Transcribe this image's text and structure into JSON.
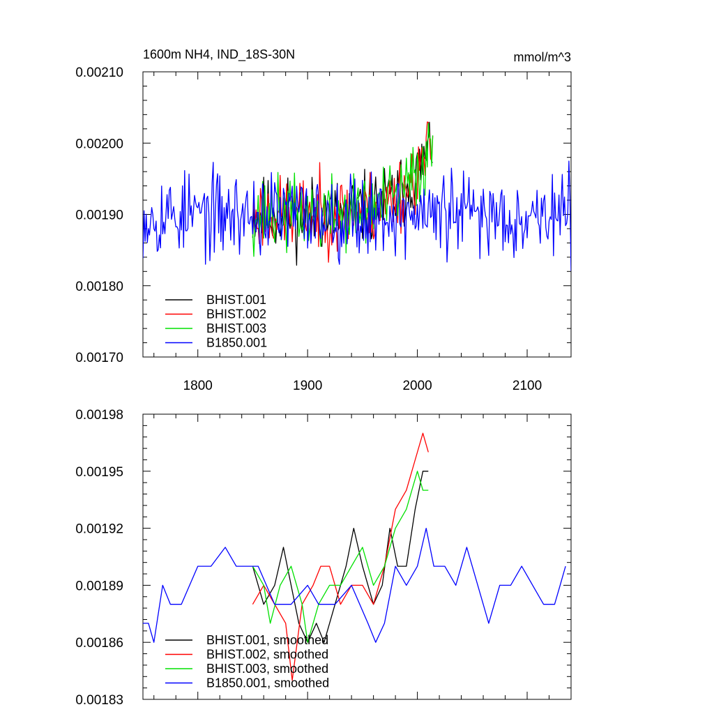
{
  "chart_data": [
    {
      "type": "line",
      "title": "1600m NH4, IND_18S-30N",
      "units": "mmol/m^3",
      "xlim": [
        1750,
        2140
      ],
      "ylim": [
        0.0017,
        0.0021
      ],
      "yticks": [
        "0.00170",
        "0.00180",
        "0.00190",
        "0.00200",
        "0.00210"
      ],
      "xticks": [
        "1800",
        "1900",
        "2000",
        "2100"
      ],
      "legend_position": "bottom-left",
      "series": [
        {
          "name": "BHIST.001",
          "color": "#000000",
          "x_start": 1850,
          "x_end": 2014,
          "mean": 0.0019,
          "amplitude": 4e-05,
          "trend_to_end": 0.0001,
          "seed": 11
        },
        {
          "name": "BHIST.002",
          "color": "#ff0000",
          "x_start": 1850,
          "x_end": 2014,
          "mean": 0.0019,
          "amplitude": 4e-05,
          "trend_to_end": 0.0001,
          "seed": 23
        },
        {
          "name": "BHIST.003",
          "color": "#00e000",
          "x_start": 1850,
          "x_end": 2014,
          "mean": 0.0019,
          "amplitude": 4e-05,
          "trend_to_end": 0.0001,
          "seed": 37
        },
        {
          "name": "B1850.001",
          "color": "#0000ff",
          "x_start": 1750,
          "x_end": 2140,
          "mean": 0.0019,
          "amplitude": 4.5e-05,
          "trend_to_end": 0.0,
          "seed": 53
        }
      ]
    },
    {
      "type": "line",
      "ylim": [
        0.00183,
        0.00198
      ],
      "yticks": [
        "0.00183",
        "0.00186",
        "0.00189",
        "0.00192",
        "0.00195",
        "0.00198"
      ],
      "legend_position": "bottom-left",
      "series": [
        {
          "name": "BHIST.001, smoothed",
          "color": "#000000",
          "x": [
            1850,
            1860,
            1870,
            1878,
            1885,
            1892,
            1900,
            1908,
            1915,
            1925,
            1935,
            1942,
            1950,
            1960,
            1968,
            1975,
            1982,
            1990,
            1998,
            2005,
            2010
          ],
          "y": [
            0.0019,
            0.00188,
            0.00189,
            0.00191,
            0.00189,
            0.00187,
            0.00186,
            0.00187,
            0.00186,
            0.00188,
            0.0019,
            0.00192,
            0.0019,
            0.00188,
            0.00189,
            0.00192,
            0.0019,
            0.0019,
            0.00193,
            0.00195,
            0.00195
          ]
        },
        {
          "name": "BHIST.002, smoothed",
          "color": "#ff0000",
          "x": [
            1850,
            1860,
            1870,
            1880,
            1886,
            1895,
            1905,
            1912,
            1920,
            1930,
            1940,
            1950,
            1960,
            1970,
            1980,
            1990,
            2000,
            2005,
            2010
          ],
          "y": [
            0.00188,
            0.00189,
            0.00188,
            0.00187,
            0.00184,
            0.00188,
            0.00189,
            0.0019,
            0.0019,
            0.00188,
            0.00189,
            0.00189,
            0.00188,
            0.0019,
            0.00193,
            0.00194,
            0.00196,
            0.00197,
            0.00196
          ]
        },
        {
          "name": "BHIST.003, smoothed",
          "color": "#00e000",
          "x": [
            1850,
            1860,
            1866,
            1875,
            1885,
            1895,
            1900,
            1910,
            1920,
            1930,
            1940,
            1950,
            1960,
            1970,
            1980,
            1990,
            2000,
            2005,
            2010
          ],
          "y": [
            0.0019,
            0.00189,
            0.00187,
            0.00189,
            0.0019,
            0.00188,
            0.00186,
            0.00188,
            0.00189,
            0.00189,
            0.0019,
            0.00191,
            0.00189,
            0.0019,
            0.00192,
            0.00193,
            0.00195,
            0.00194,
            0.00194
          ]
        },
        {
          "name": "B1850.001, smoothed",
          "color": "#0000ff",
          "x": [
            1750,
            1755,
            1760,
            1768,
            1775,
            1785,
            1800,
            1812,
            1825,
            1835,
            1845,
            1855,
            1870,
            1885,
            1900,
            1910,
            1925,
            1940,
            1955,
            1962,
            1970,
            1980,
            1990,
            2000,
            2008,
            2015,
            2025,
            2035,
            2045,
            2055,
            2065,
            2075,
            2085,
            2095,
            2105,
            2115,
            2125,
            2130,
            2135
          ],
          "y": [
            0.00187,
            0.00187,
            0.00186,
            0.00189,
            0.00188,
            0.00188,
            0.0019,
            0.0019,
            0.00191,
            0.0019,
            0.0019,
            0.0019,
            0.00188,
            0.00188,
            0.00189,
            0.00188,
            0.00188,
            0.00189,
            0.00187,
            0.00186,
            0.00187,
            0.0019,
            0.00189,
            0.0019,
            0.00192,
            0.0019,
            0.0019,
            0.00189,
            0.00191,
            0.00189,
            0.00187,
            0.00189,
            0.00189,
            0.0019,
            0.00189,
            0.00188,
            0.00188,
            0.00189,
            0.0019
          ]
        }
      ]
    }
  ]
}
